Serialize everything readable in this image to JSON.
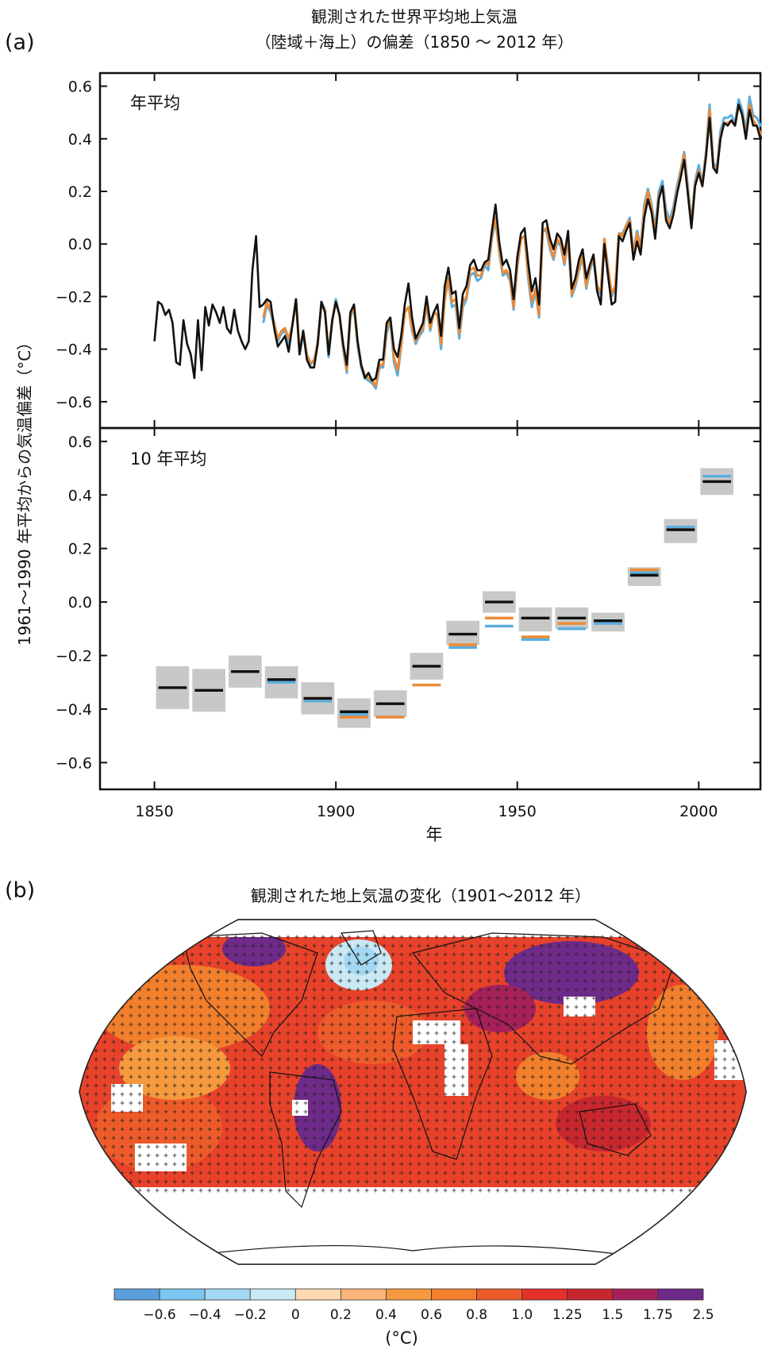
{
  "panel_a": {
    "label": "(a)",
    "title_line1": "観測された世界平均地上気温",
    "title_line2": "（陸域＋海上）の偏差（1850 ～ 2012 年）",
    "ylabel": "1961～1990 年平均からの気温偏差（°C）",
    "xlabel": "年",
    "top_label": "年平均",
    "bottom_label": "10 年平均"
  },
  "panel_b": {
    "label": "(b)",
    "title": "観測された地上気温の変化（1901～2012 年）",
    "unit": "(°C)"
  },
  "colors": {
    "black": "#111111",
    "blue": "#5aaee0",
    "orange": "#ee8a33",
    "gray": "#c8c8c8"
  },
  "chart_data": [
    {
      "type": "line",
      "title": "年平均",
      "xlim": [
        1835,
        2017
      ],
      "ylim": [
        -0.7,
        0.65
      ],
      "xticks": [
        1850,
        1900,
        1950,
        2000
      ],
      "yticks": [
        -0.6,
        -0.4,
        -0.2,
        0.0,
        0.2,
        0.4,
        0.6
      ],
      "ytick_labels": [
        "−0.6",
        "−0.4",
        "−0.2",
        "0.0",
        "0.2",
        "0.4",
        "0.6"
      ],
      "series": [
        {
          "color": "#111111",
          "x_start": 1850,
          "values": [
            -0.37,
            -0.22,
            -0.23,
            -0.27,
            -0.25,
            -0.3,
            -0.45,
            -0.46,
            -0.29,
            -0.38,
            -0.42,
            -0.51,
            -0.29,
            -0.48,
            -0.24,
            -0.31,
            -0.23,
            -0.26,
            -0.3,
            -0.24,
            -0.32,
            -0.34,
            -0.25,
            -0.33,
            -0.37,
            -0.4,
            -0.37,
            -0.1,
            0.03,
            -0.24,
            -0.23,
            -0.21,
            -0.22,
            -0.32,
            -0.39,
            -0.37,
            -0.35,
            -0.41,
            -0.31,
            -0.21,
            -0.42,
            -0.33,
            -0.44,
            -0.47,
            -0.47,
            -0.38,
            -0.22,
            -0.26,
            -0.42,
            -0.29,
            -0.22,
            -0.27,
            -0.38,
            -0.46,
            -0.26,
            -0.23,
            -0.37,
            -0.46,
            -0.51,
            -0.49,
            -0.52,
            -0.51,
            -0.44,
            -0.44,
            -0.3,
            -0.28,
            -0.4,
            -0.43,
            -0.35,
            -0.23,
            -0.15,
            -0.28,
            -0.36,
            -0.33,
            -0.3,
            -0.2,
            -0.3,
            -0.26,
            -0.23,
            -0.35,
            -0.16,
            -0.09,
            -0.19,
            -0.18,
            -0.32,
            -0.19,
            -0.16,
            -0.08,
            -0.06,
            -0.1,
            -0.1,
            -0.07,
            -0.06,
            0.05,
            0.15,
            0.01,
            -0.08,
            -0.06,
            -0.1,
            -0.21,
            -0.05,
            0.04,
            0.06,
            -0.07,
            -0.18,
            -0.13,
            -0.23,
            0.08,
            0.09,
            0.02,
            -0.02,
            0.04,
            0.02,
            -0.04,
            0.05,
            -0.17,
            -0.13,
            -0.06,
            -0.02,
            -0.13,
            -0.08,
            -0.04,
            -0.18,
            -0.23,
            0.0,
            -0.12,
            -0.23,
            -0.22,
            0.03,
            0.01,
            0.05,
            0.08,
            -0.06,
            0.01,
            -0.04,
            0.1,
            0.17,
            0.12,
            0.02,
            0.17,
            0.22,
            0.09,
            0.06,
            0.11,
            0.19,
            0.25,
            0.32,
            0.19,
            0.06,
            0.22,
            0.27,
            0.22,
            0.33,
            0.48,
            0.29,
            0.27,
            0.4,
            0.46,
            0.45,
            0.47,
            0.45,
            0.53,
            0.49,
            0.4,
            0.51,
            0.45,
            0.45,
            0.4,
            0.41
          ],
          "name": ""
        },
        {
          "color": "#5aaee0",
          "x_start": 1880,
          "values": [
            -0.3,
            -0.23,
            -0.26,
            -0.31,
            -0.37,
            -0.34,
            -0.33,
            -0.38,
            -0.31,
            -0.21,
            -0.42,
            -0.34,
            -0.43,
            -0.46,
            -0.44,
            -0.38,
            -0.22,
            -0.25,
            -0.43,
            -0.29,
            -0.21,
            -0.27,
            -0.4,
            -0.49,
            -0.28,
            -0.24,
            -0.39,
            -0.47,
            -0.51,
            -0.52,
            -0.53,
            -0.55,
            -0.47,
            -0.47,
            -0.34,
            -0.29,
            -0.45,
            -0.5,
            -0.39,
            -0.26,
            -0.24,
            -0.33,
            -0.38,
            -0.35,
            -0.33,
            -0.23,
            -0.33,
            -0.26,
            -0.27,
            -0.4,
            -0.21,
            -0.14,
            -0.24,
            -0.23,
            -0.36,
            -0.24,
            -0.21,
            -0.12,
            -0.11,
            -0.14,
            -0.13,
            -0.08,
            -0.1,
            0.02,
            0.09,
            -0.03,
            -0.12,
            -0.11,
            -0.14,
            -0.25,
            -0.09,
            0.02,
            0.03,
            -0.13,
            -0.24,
            -0.18,
            -0.28,
            0.05,
            0.05,
            -0.02,
            -0.06,
            0.01,
            -0.01,
            -0.08,
            0.02,
            -0.2,
            -0.16,
            -0.1,
            -0.05,
            -0.17,
            -0.1,
            -0.06,
            -0.17,
            -0.19,
            0.02,
            -0.09,
            -0.2,
            -0.17,
            0.04,
            0.04,
            0.07,
            0.1,
            -0.03,
            0.05,
            -0.01,
            0.15,
            0.21,
            0.15,
            0.06,
            0.2,
            0.24,
            0.13,
            0.09,
            0.14,
            0.22,
            0.28,
            0.35,
            0.22,
            0.08,
            0.24,
            0.3,
            0.23,
            0.35,
            0.53,
            0.31,
            0.29,
            0.43,
            0.48,
            0.48,
            0.49,
            0.46,
            0.55,
            0.51,
            0.43,
            0.56,
            0.49,
            0.48,
            0.45,
            0.47
          ],
          "name": ""
        },
        {
          "color": "#ee8a33",
          "x_start": 1880,
          "values": [
            -0.28,
            -0.22,
            -0.25,
            -0.3,
            -0.36,
            -0.33,
            -0.32,
            -0.36,
            -0.31,
            -0.21,
            -0.41,
            -0.33,
            -0.42,
            -0.45,
            -0.45,
            -0.37,
            -0.23,
            -0.25,
            -0.41,
            -0.29,
            -0.22,
            -0.27,
            -0.39,
            -0.48,
            -0.27,
            -0.24,
            -0.38,
            -0.46,
            -0.5,
            -0.51,
            -0.52,
            -0.54,
            -0.46,
            -0.46,
            -0.32,
            -0.28,
            -0.43,
            -0.48,
            -0.38,
            -0.26,
            -0.24,
            -0.32,
            -0.37,
            -0.34,
            -0.32,
            -0.22,
            -0.32,
            -0.26,
            -0.27,
            -0.38,
            -0.21,
            -0.13,
            -0.22,
            -0.21,
            -0.34,
            -0.22,
            -0.2,
            -0.1,
            -0.09,
            -0.12,
            -0.12,
            -0.07,
            -0.08,
            0.03,
            0.1,
            -0.02,
            -0.11,
            -0.1,
            -0.13,
            -0.24,
            -0.08,
            0.02,
            0.03,
            -0.11,
            -0.22,
            -0.17,
            -0.27,
            0.05,
            0.06,
            -0.01,
            -0.05,
            0.02,
            0.0,
            -0.07,
            0.03,
            -0.19,
            -0.15,
            -0.09,
            -0.04,
            -0.16,
            -0.09,
            -0.05,
            -0.16,
            -0.18,
            0.02,
            -0.09,
            -0.19,
            -0.16,
            0.04,
            0.03,
            0.07,
            0.09,
            -0.04,
            0.04,
            -0.02,
            0.13,
            0.2,
            0.14,
            0.04,
            0.18,
            0.22,
            0.11,
            0.08,
            0.12,
            0.2,
            0.27,
            0.34,
            0.2,
            0.07,
            0.23,
            0.28,
            0.22,
            0.34,
            0.51,
            0.3,
            0.28,
            0.41,
            0.46,
            0.46,
            0.47,
            0.45,
            0.53,
            0.49,
            0.41,
            0.53,
            0.47,
            0.45,
            0.42,
            0.44
          ],
          "name": ""
        }
      ]
    },
    {
      "type": "bar",
      "title": "10 年平均",
      "xlabel": "年",
      "xlim": [
        1835,
        2017
      ],
      "ylim": [
        -0.7,
        0.65
      ],
      "xticks": [
        1850,
        1900,
        1950,
        2000
      ],
      "yticks": [
        -0.6,
        -0.4,
        -0.2,
        0.0,
        0.2,
        0.4,
        0.6
      ],
      "ytick_labels": [
        "−0.6",
        "−0.4",
        "−0.2",
        "0.0",
        "0.2",
        "0.4",
        "0.6"
      ],
      "decades": [
        1850,
        1860,
        1870,
        1880,
        1890,
        1900,
        1910,
        1920,
        1930,
        1940,
        1950,
        1960,
        1970,
        1980,
        1990,
        2000
      ],
      "series": [
        {
          "color": "#111111",
          "values": [
            -0.32,
            -0.33,
            -0.26,
            -0.29,
            -0.36,
            -0.41,
            -0.38,
            -0.24,
            -0.12,
            0.0,
            -0.06,
            -0.06,
            -0.07,
            0.1,
            0.27,
            0.45
          ],
          "uncertainty_low": [
            -0.4,
            -0.41,
            -0.32,
            -0.36,
            -0.42,
            -0.47,
            -0.43,
            -0.29,
            -0.16,
            -0.04,
            -0.11,
            -0.1,
            -0.11,
            0.06,
            0.22,
            0.4
          ],
          "uncertainty_high": [
            -0.24,
            -0.25,
            -0.2,
            -0.24,
            -0.3,
            -0.36,
            -0.33,
            -0.19,
            -0.07,
            0.04,
            -0.02,
            -0.02,
            -0.04,
            0.13,
            0.31,
            0.5
          ]
        },
        {
          "color": "#5aaee0",
          "values": [
            null,
            null,
            null,
            -0.3,
            -0.37,
            -0.42,
            -0.43,
            -0.31,
            -0.17,
            -0.09,
            -0.14,
            -0.1,
            -0.08,
            0.11,
            0.28,
            0.47
          ]
        },
        {
          "color": "#ee8a33",
          "values": [
            null,
            null,
            null,
            -0.29,
            -0.36,
            -0.43,
            -0.43,
            -0.31,
            -0.16,
            -0.06,
            -0.13,
            -0.08,
            -0.07,
            0.12,
            0.27,
            0.45
          ]
        }
      ]
    },
    {
      "type": "heatmap",
      "title": "観測された地上気温の変化（1901～2012 年）",
      "colorbar": {
        "unit": "(°C)",
        "labels": [
          "−0.6",
          "−0.4",
          "−0.2",
          "0",
          "0.2",
          "0.4",
          "0.6",
          "0.8",
          "1.0",
          "1.25",
          "1.5",
          "1.75",
          "2.5"
        ],
        "colors": [
          "#5b9fdc",
          "#7cc5f0",
          "#a4d7f1",
          "#c9e9f4",
          "#fdd8b0",
          "#fbb479",
          "#f6993f",
          "#f27f2c",
          "#ee5b2a",
          "#e3302b",
          "#c8272e",
          "#a6205a",
          "#6e2a88"
        ]
      }
    }
  ]
}
